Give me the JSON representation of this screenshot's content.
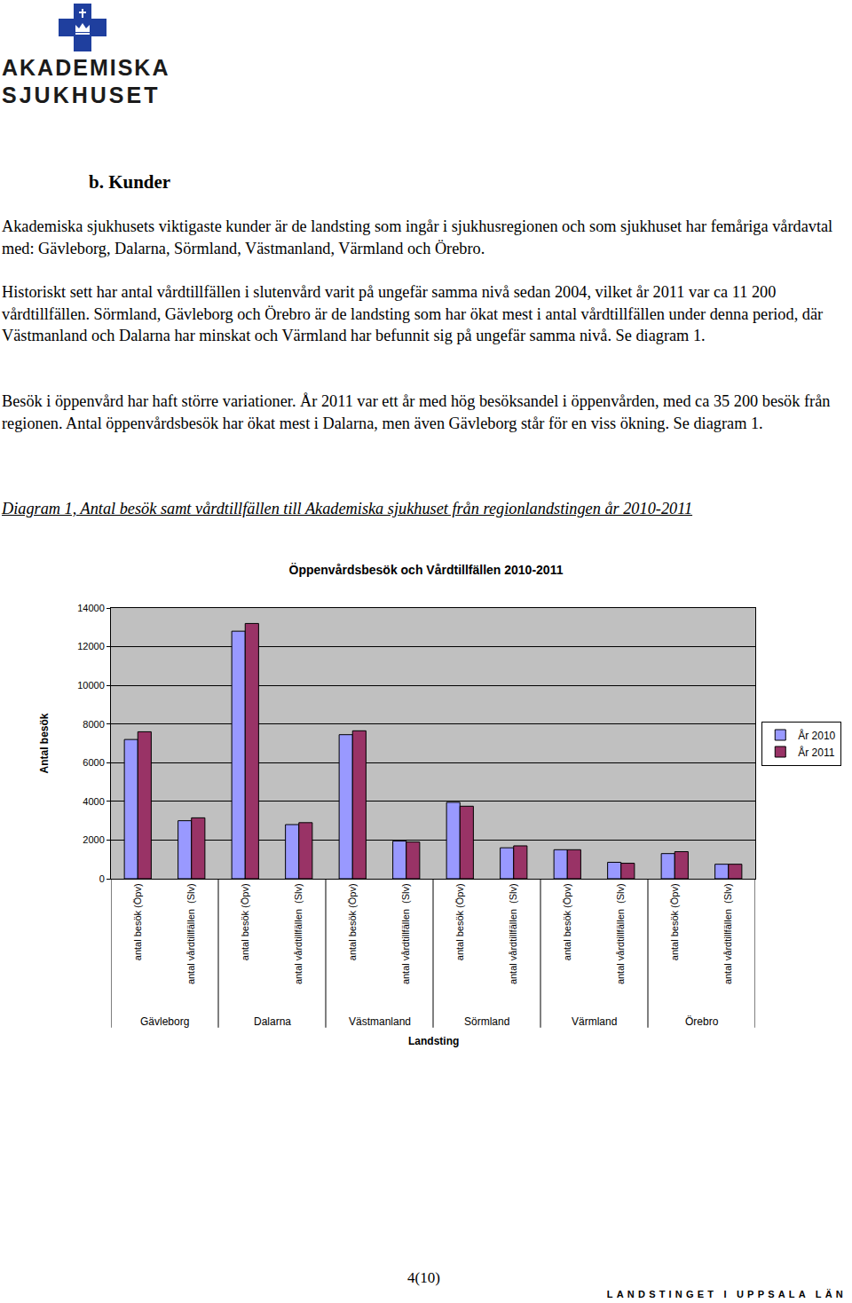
{
  "header": {
    "logo_lines": [
      "AKADEMISKA",
      "SJUKHUSET"
    ]
  },
  "heading": "b. Kunder",
  "paragraphs": [
    "Akademiska sjukhusets viktigaste kunder är de landsting som ingår i sjukhusregionen och som sjukhuset har femåriga vårdavtal med: Gävleborg, Dalarna, Sörmland, Västmanland, Värmland och Örebro.",
    "Historiskt sett har antal vårdtillfällen i slutenvård varit på ungefär samma nivå sedan 2004, vilket år 2011 var ca 11 200 vårdtillfällen. Sörmland, Gävleborg och Örebro är de landsting som har ökat mest i antal vårdtillfällen under denna period, där Västmanland och Dalarna har minskat och Värmland har befunnit sig på ungefär samma nivå. Se diagram 1.",
    "Besök i öppenvård har haft större variationer. År 2011 var ett år med hög besöksandel i öppenvården, med ca 35 200 besök från regionen. Antal öppenvårdsbesök har ökat mest i Dalarna, men även Gävleborg står för en viss ökning. Se diagram 1."
  ],
  "caption": "Diagram 1, Antal besök samt vårdtillfällen till Akademiska sjukhuset från regionlandstingen år 2010-2011",
  "chart_data": {
    "type": "bar",
    "title": "Öppenvårdsbesök och Vårdtillfällen 2010-2011",
    "categories": [
      "antal besök (Öpv)",
      "antal vårdtillfällen  (Slv)",
      "antal besök (Öpv)",
      "antal vårdtillfällen  (Slv)",
      "antal besök (Öpv)",
      "antal vårdtillfällen  (Slv)",
      "antal besök (Öpv)",
      "antal vårdtillfällen  (Slv)",
      "antal besök (Öpv)",
      "antal vårdtillfällen  (Slv)",
      "antal besök (Öpv)",
      "antal vårdtillfällen  (Slv)"
    ],
    "group_labels": [
      "Gävleborg",
      "Dalarna",
      "Västmanland",
      "Sörmland",
      "Värmland",
      "Örebro"
    ],
    "series": [
      {
        "name": "År 2010",
        "color": "#9999ff",
        "values": [
          7200,
          3000,
          12800,
          2800,
          7450,
          1950,
          3950,
          1600,
          1500,
          850,
          1300,
          750
        ]
      },
      {
        "name": "År 2011",
        "color": "#993366",
        "values": [
          7600,
          3150,
          13200,
          2900,
          7650,
          1900,
          3750,
          1700,
          1500,
          800,
          1400,
          750
        ]
      }
    ],
    "xlabel": "Landsting",
    "ylabel": "Antal besök",
    "ylim": [
      0,
      14000
    ],
    "yticks": [
      0,
      2000,
      4000,
      6000,
      8000,
      10000,
      12000,
      14000
    ],
    "grid": true,
    "legend": "right"
  },
  "footer": {
    "page": "4(10)",
    "organization": "LANDSTINGET I UPPSALA LÄN"
  }
}
